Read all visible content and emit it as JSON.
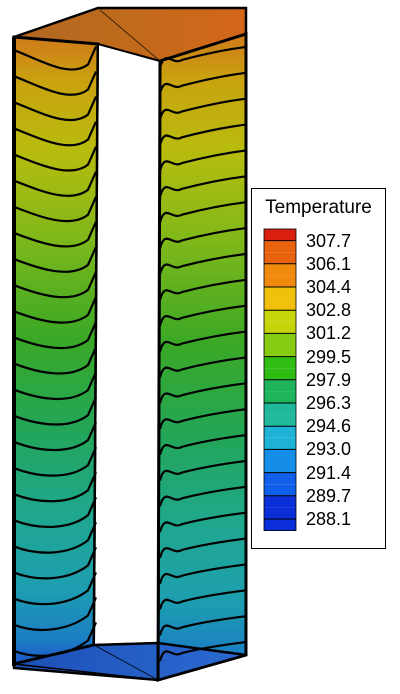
{
  "legend": {
    "title": "Temperature",
    "levels": [
      "307.7",
      "306.1",
      "304.4",
      "302.8",
      "301.2",
      "299.5",
      "297.9",
      "296.3",
      "294.6",
      "293.0",
      "291.4",
      "289.7",
      "288.1"
    ],
    "colors": [
      "#d9200f",
      "#e9630f",
      "#f08a0d",
      "#f1c00a",
      "#c7d40b",
      "#85cc12",
      "#2fbd14",
      "#1db45a",
      "#20b99e",
      "#1eb3d6",
      "#148ee8",
      "#1160ec",
      "#0a2fd8"
    ]
  },
  "contour_count": 24,
  "colors": {
    "top": "#b9661d",
    "bottom": "#1f56c9",
    "outline": "#000000"
  }
}
